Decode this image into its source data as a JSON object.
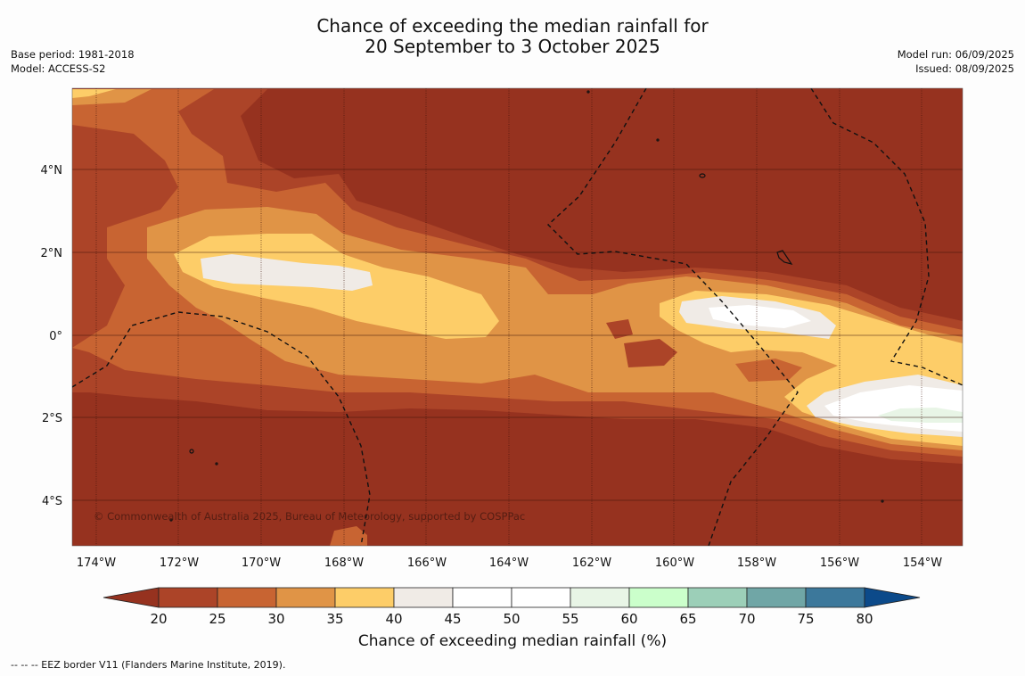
{
  "title": {
    "line1": "Chance of exceeding the median rainfall for",
    "line2": "20 September to 3 October 2025"
  },
  "header_left": {
    "base_period": "Base period: 1981-2018",
    "model": "Model: ACCESS-S2"
  },
  "header_right": {
    "model_run": "Model run: 06/09/2025",
    "issued": "Issued: 08/09/2025"
  },
  "map": {
    "lon_labels": [
      "174°W",
      "172°W",
      "170°W",
      "168°W",
      "166°W",
      "164°W",
      "162°W",
      "160°W",
      "158°W",
      "156°W",
      "154°W"
    ],
    "lat_labels": [
      "4°N",
      "2°N",
      "0°",
      "2°S",
      "4°S"
    ],
    "copyright": "© Commonwealth of Australia 2025, Bureau of Meteorology, supported by COSPPac",
    "colors": {
      "below_20": "#96321f",
      "c20_25": "#ac4428",
      "c25_30": "#c86432",
      "c30_35": "#e09446",
      "c35_40": "#fdcd68",
      "c40_45": "#f0ebe6",
      "c45_50": "#ffffff",
      "c55_60": "#e8f5e6",
      "c60_65": "#cbffcb",
      "c65_70": "#9ccfb8",
      "c70_75": "#70a6a6",
      "c75_80": "#3c789b",
      "above_80": "#0c4a8a"
    }
  },
  "colorbar": {
    "ticks": [
      "20",
      "25",
      "30",
      "35",
      "40",
      "45",
      "50",
      "55",
      "60",
      "65",
      "70",
      "75",
      "80"
    ],
    "colors": [
      "#ac4428",
      "#c86432",
      "#e09446",
      "#fdcd68",
      "#f0ebe6",
      "#ffffff",
      "#ffffff",
      "#e8f5e6",
      "#cbffcb",
      "#9ccfb8",
      "#70a6a6",
      "#3c789b"
    ],
    "low_color": "#96321f",
    "high_color": "#0c4a8a",
    "title": "Chance of exceeding median rainfall (%)"
  },
  "legend_note": "--  --  -- EEZ border V11 (Flanders Marine Institute, 2019)."
}
